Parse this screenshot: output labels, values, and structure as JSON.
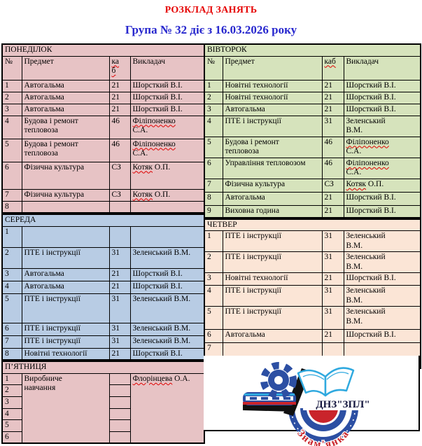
{
  "page": {
    "title": "РОЗКЛАД ЗАНЯТЬ",
    "subtitle": "Група № 32 діє з 16.03.2026 року"
  },
  "colors": {
    "monday": "#e7c3c5",
    "tuesday": "#d6e3bc",
    "wednesday": "#b8cce4",
    "thursday": "#fbe5d6",
    "friday": "#e7c3c5",
    "title_red": "#e60000",
    "subtitle_blue": "#2727ce",
    "spellcheck_wavy": "#e00000",
    "logo_blue": "#2c4fa3",
    "logo_light_blue": "#2fa9df",
    "logo_red": "#c9242b"
  },
  "days": [
    {
      "key": "monday",
      "name": "ПОНЕДІЛОК",
      "column": "left",
      "col_header": {
        "num": "№",
        "subject": "Предмет",
        "room": "ка\nб",
        "teacher": "Викладач"
      },
      "rows": [
        {
          "num": "1",
          "subject": "Автогальма",
          "room": "21",
          "teacher_wavy": "",
          "teacher_rest": "Шорсткий В.І."
        },
        {
          "num": "2",
          "subject": "Автогальма",
          "room": "21",
          "teacher_wavy": "",
          "teacher_rest": "Шорсткий В.І."
        },
        {
          "num": "3",
          "subject": "Автогальма",
          "room": "21",
          "teacher_wavy": "",
          "teacher_rest": "Шорсткий В.І."
        },
        {
          "num": "4",
          "subject": "Будова і ремонт\nтепловоза",
          "room": "46",
          "teacher_wavy": "Філіпоненко",
          "teacher_rest": "\nС.А."
        },
        {
          "num": "5",
          "subject": "Будова і ремонт\nтепловоза",
          "room": "46",
          "teacher_wavy": "Філіпоненко",
          "teacher_rest": "\nС.А."
        },
        {
          "num": "6",
          "subject": "Фізична культура",
          "room": "СЗ",
          "teacher_wavy": "Котяк",
          "teacher_rest": " О.П."
        },
        {
          "num": "7",
          "subject": "Фізична культура",
          "room": "СЗ",
          "teacher_wavy": "Котяк",
          "teacher_rest": " О.П."
        },
        {
          "num": "8",
          "subject": "",
          "room": "",
          "teacher_wavy": "",
          "teacher_rest": ""
        }
      ]
    },
    {
      "key": "tuesday",
      "name": "ВІВТОРОК",
      "column": "right",
      "col_header": {
        "num": "№",
        "subject": "Предмет",
        "room": "каб",
        "teacher": "Викладач"
      },
      "rows": [
        {
          "num": "1",
          "subject": "Новітні технології",
          "room": "21",
          "teacher_wavy": "",
          "teacher_rest": "Шорсткий В.І."
        },
        {
          "num": "2",
          "subject": "Новітні технології",
          "room": "21",
          "teacher_wavy": "",
          "teacher_rest": "Шорсткий В.І."
        },
        {
          "num": "3",
          "subject": "Автогальма",
          "room": "21",
          "teacher_wavy": "",
          "teacher_rest": "Шорсткий В.І."
        },
        {
          "num": "4",
          "subject": "ПТЕ і інструкції",
          "room": "31",
          "teacher_wavy": "",
          "teacher_rest": "Зеленський\nВ.М."
        },
        {
          "num": "5",
          "subject": "Будова і ремонт\nтепловоза",
          "room": "46",
          "teacher_wavy": "Філіпоненко",
          "teacher_rest": "\nС.А."
        },
        {
          "num": "6",
          "subject": "Управління тепловозом",
          "room": "46",
          "teacher_wavy": "Філіпоненко",
          "teacher_rest": "\nС.А."
        },
        {
          "num": "7",
          "subject": "Фізична культура",
          "room": "СЗ",
          "teacher_wavy": "Котяк",
          "teacher_rest": " О.П."
        },
        {
          "num": "8",
          "subject": "Автогальма",
          "room": "21",
          "teacher_wavy": "",
          "teacher_rest": "Шорсткий В.І."
        },
        {
          "num": "9",
          "subject": "Виховна година",
          "room": "21",
          "teacher_wavy": "",
          "teacher_rest": "Шорсткий В.І."
        }
      ]
    },
    {
      "key": "wednesday",
      "name": "СЕРЕДА",
      "column": "left",
      "rows": [
        {
          "num": "1",
          "subject": "",
          "room": "",
          "teacher_wavy": "",
          "teacher_rest": ""
        },
        {
          "num": "2",
          "subject": "ПТЕ і інструкції",
          "room": "31",
          "teacher_wavy": "",
          "teacher_rest": "Зеленський В.М."
        },
        {
          "num": "3",
          "subject": "Автогальма",
          "room": "21",
          "teacher_wavy": "",
          "teacher_rest": "Шорсткий В.І."
        },
        {
          "num": "4",
          "subject": "Автогальма",
          "room": "21",
          "teacher_wavy": "",
          "teacher_rest": "Шорсткий В.І."
        },
        {
          "num": "5",
          "subject": "ПТЕ і інструкції",
          "room": "31",
          "teacher_wavy": "",
          "teacher_rest": "Зеленський В.М."
        },
        {
          "num": "6",
          "subject": "ПТЕ і інструкції",
          "room": "31",
          "teacher_wavy": "",
          "teacher_rest": "Зеленський В.М."
        },
        {
          "num": "7",
          "subject": "ПТЕ і інструкції",
          "room": "31",
          "teacher_wavy": "",
          "teacher_rest": "Зеленський В.М."
        },
        {
          "num": "8",
          "subject": "Новітні технології",
          "room": "21",
          "teacher_wavy": "",
          "teacher_rest": "Шорсткий В.І."
        }
      ]
    },
    {
      "key": "thursday",
      "name": "ЧЕТВЕР",
      "column": "right",
      "rows": [
        {
          "num": "1",
          "subject": "ПТЕ і інструкції",
          "room": "31",
          "teacher_wavy": "",
          "teacher_rest": "Зеленський\nВ.М."
        },
        {
          "num": "2",
          "subject": "ПТЕ і інструкції",
          "room": "31",
          "teacher_wavy": "",
          "teacher_rest": "Зеленський\nВ.М."
        },
        {
          "num": "3",
          "subject": "Новітні технології",
          "room": "21",
          "teacher_wavy": "",
          "teacher_rest": "Шорсткий В.І."
        },
        {
          "num": "4",
          "subject": "ПТЕ і інструкції",
          "room": "31",
          "teacher_wavy": "",
          "teacher_rest": "Зеленський\nВ.М."
        },
        {
          "num": "5",
          "subject": "ПТЕ і інструкції",
          "room": "31",
          "teacher_wavy": "",
          "teacher_rest": "Зеленський\nВ.М."
        },
        {
          "num": "6",
          "subject": "Автогальма",
          "room": "21",
          "teacher_wavy": "",
          "teacher_rest": "Шорсткий В.І."
        },
        {
          "num": "7",
          "subject": "",
          "room": "",
          "teacher_wavy": "",
          "teacher_rest": ""
        },
        {
          "num": "",
          "subject": "",
          "room": "",
          "teacher_wavy": "",
          "teacher_rest": ""
        }
      ]
    },
    {
      "key": "friday",
      "name": "П’ЯТНИЦЯ",
      "column": "left",
      "merged": {
        "subject": "Виробниче\nнавчання",
        "teacher_wavy": "Флорінцева",
        "teacher_rest": " О.А."
      },
      "rows": [
        {
          "num": "1",
          "room": ""
        },
        {
          "num": "2",
          "room": ""
        },
        {
          "num": "3",
          "room": ""
        },
        {
          "num": "4",
          "room": ""
        },
        {
          "num": "5",
          "room": ""
        },
        {
          "num": "6",
          "room": ""
        }
      ]
    }
  ],
  "logo": {
    "abbr": "ДНЗ\"ЗПЛ\"",
    "city_arc": "Знам'янка"
  }
}
